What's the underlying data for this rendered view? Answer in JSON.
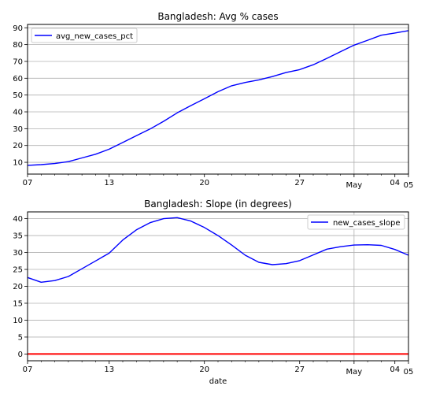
{
  "chart_data": [
    {
      "type": "line",
      "title": "Bangladesh: Avg % cases",
      "xlabel": "",
      "ylabel": "",
      "x_ticks": [
        "07",
        "13",
        "20",
        "27",
        "May",
        "04",
        "05"
      ],
      "y_ticks": [
        "10",
        "20",
        "30",
        "40",
        "50",
        "60",
        "70",
        "80",
        "90"
      ],
      "ylim": [
        3,
        92
      ],
      "grid": true,
      "legend_location": "upper left",
      "series": [
        {
          "name": "avg_new_cases_pct",
          "color": "#0000ff",
          "x": [
            "04-07",
            "04-08",
            "04-09",
            "04-10",
            "04-11",
            "04-12",
            "04-13",
            "04-14",
            "04-15",
            "04-16",
            "04-17",
            "04-18",
            "04-19",
            "04-20",
            "04-21",
            "04-22",
            "04-23",
            "04-24",
            "04-25",
            "04-26",
            "04-27",
            "04-28",
            "04-29",
            "04-30",
            "05-01",
            "05-02",
            "05-03",
            "05-04",
            "05-05"
          ],
          "values": [
            8.2,
            8.6,
            9.3,
            10.4,
            12.6,
            14.8,
            17.8,
            21.8,
            25.8,
            29.8,
            34.4,
            39.4,
            43.7,
            47.8,
            52.0,
            55.5,
            57.5,
            59.0,
            61.0,
            63.4,
            65.1,
            68.0,
            71.8,
            75.8,
            79.7,
            82.6,
            85.6,
            86.9,
            88.3
          ]
        }
      ]
    },
    {
      "type": "line",
      "title": "Bangladesh: Slope (in degrees)",
      "xlabel": "date",
      "ylabel": "",
      "x_ticks": [
        "07",
        "13",
        "20",
        "27",
        "May",
        "04",
        "05"
      ],
      "y_ticks": [
        "0",
        "5",
        "10",
        "15",
        "20",
        "25",
        "30",
        "35",
        "40"
      ],
      "ylim": [
        -2,
        42
      ],
      "grid": true,
      "legend_location": "upper right",
      "series": [
        {
          "name": "new_cases_slope",
          "color": "#0000ff",
          "x": [
            "04-07",
            "04-08",
            "04-09",
            "04-10",
            "04-11",
            "04-12",
            "04-13",
            "04-14",
            "04-15",
            "04-16",
            "04-17",
            "04-18",
            "04-19",
            "04-20",
            "04-21",
            "04-22",
            "04-23",
            "04-24",
            "04-25",
            "04-26",
            "04-27",
            "04-28",
            "04-29",
            "04-30",
            "05-01",
            "05-02",
            "05-03",
            "05-04",
            "05-05"
          ],
          "values": [
            22.6,
            21.2,
            21.7,
            22.9,
            25.2,
            27.5,
            29.8,
            33.7,
            36.7,
            38.8,
            40.0,
            40.3,
            39.3,
            37.4,
            35.0,
            32.2,
            29.2,
            27.1,
            26.4,
            26.7,
            27.6,
            29.3,
            31.0,
            31.7,
            32.2,
            32.3,
            32.1,
            30.9,
            29.2
          ]
        }
      ],
      "reference_line": {
        "y": 0,
        "color": "#ff0000"
      }
    }
  ]
}
